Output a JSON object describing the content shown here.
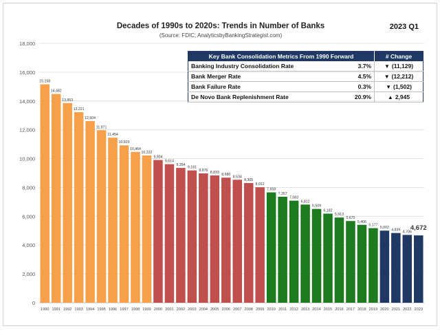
{
  "header": {
    "title": "Decades of 1990s to 2020s: Trends in Number of Banks",
    "source": "(Source: FDIC; AnalyticsbyBankingStrategist.com)",
    "period": "2023  Q1"
  },
  "metrics_table": {
    "header_label": "Key Bank Consolidation Metrics From 1990 Forward",
    "header_change": "# Change",
    "rows": [
      {
        "label": "Banking Industry Consolidation Rate",
        "rate": "3.7%",
        "change": "(11,129)",
        "direction": "down"
      },
      {
        "label": "Bank Merger Rate",
        "rate": "4.5%",
        "change": "(12,212)",
        "direction": "down"
      },
      {
        "label": "Bank Failure Rate",
        "rate": "0.3%",
        "change": "(1,502)",
        "direction": "down"
      },
      {
        "label": "De Novo Bank Replenishment Rate",
        "rate": "20.9%",
        "change": "2,945",
        "direction": "up"
      }
    ]
  },
  "colors": {
    "1990s": "#f5a04a",
    "2000s": "#c0504d",
    "2010s": "#1e7a1e",
    "2020s": "#1f3864",
    "down_arrow": "#c00000",
    "up_arrow": "#2e8b2e"
  },
  "chart_data": {
    "type": "bar",
    "title": "Decades of 1990s to 2020s: Trends in Number of Banks",
    "categories": [
      "1990",
      "1991",
      "1992",
      "1993",
      "1994",
      "1995",
      "1996",
      "1997",
      "1998",
      "1999",
      "2000",
      "2001",
      "2002",
      "2003",
      "2004",
      "2005",
      "2006",
      "2007",
      "2008",
      "2009",
      "2010",
      "2011",
      "2012",
      "2013",
      "2014",
      "2015",
      "2016",
      "2017",
      "2018",
      "2019",
      "2020",
      "2021",
      "2022",
      "2023"
    ],
    "values": [
      15158,
      14482,
      13853,
      13221,
      12604,
      11971,
      11454,
      10923,
      10464,
      10222,
      9904,
      9614,
      9354,
      9181,
      8976,
      8833,
      8680,
      8534,
      8305,
      8012,
      7658,
      7357,
      7083,
      6812,
      6509,
      6182,
      5913,
      5670,
      5406,
      5177,
      5002,
      4839,
      4706,
      4672
    ],
    "value_labels": [
      "15,158",
      "14,482",
      "13,853",
      "13,221",
      "12,604",
      "11,971",
      "11,454",
      "10,923",
      "10,464",
      "10,222",
      "9,904",
      "9,614",
      "9,354",
      "9,181",
      "8,976",
      "8,833",
      "8,680",
      "8,534",
      "8,305",
      "8,012",
      "7,658",
      "7,357",
      "7,083",
      "6,812",
      "6,509",
      "6,182",
      "5,913",
      "5,670",
      "5,406",
      "5,177",
      "5,002",
      "4,839",
      "4,706",
      "4,672"
    ],
    "decade": [
      "1990s",
      "1990s",
      "1990s",
      "1990s",
      "1990s",
      "1990s",
      "1990s",
      "1990s",
      "1990s",
      "1990s",
      "2000s",
      "2000s",
      "2000s",
      "2000s",
      "2000s",
      "2000s",
      "2000s",
      "2000s",
      "2000s",
      "2000s",
      "2010s",
      "2010s",
      "2010s",
      "2010s",
      "2010s",
      "2010s",
      "2010s",
      "2010s",
      "2010s",
      "2010s",
      "2020s",
      "2020s",
      "2020s",
      "2020s"
    ],
    "ylim": [
      0,
      18000
    ],
    "yticks": [
      0,
      2000,
      4000,
      6000,
      8000,
      10000,
      12000,
      14000,
      16000,
      18000
    ],
    "ytick_labels": [
      "0",
      "2,000",
      "4,000",
      "6,000",
      "8,000",
      "10,000",
      "12,000",
      "14,000",
      "16,000",
      "18,000"
    ],
    "grid": true,
    "highlight_last_label": "4,672"
  }
}
